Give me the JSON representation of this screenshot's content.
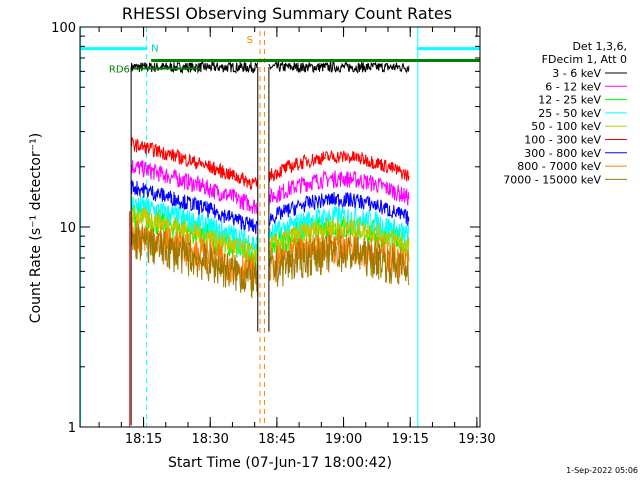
{
  "chart_data": {
    "type": "line",
    "title": "RHESSI Observing Summary Count Rates",
    "xlabel": "Start Time (07-Jun-17 18:00:42)",
    "ylabel": "Count Rate (s⁻¹ detector⁻¹)",
    "y_scale": "log",
    "ylim": [
      1,
      100
    ],
    "xlim_minutes": [
      0,
      90
    ],
    "x_ticks": [
      "18:15",
      "18:30",
      "18:45",
      "19:00",
      "19:15",
      "19:30"
    ],
    "y_ticks": [
      "1",
      "10",
      "100"
    ],
    "legend_header": [
      "Det 1,3,6,",
      "FDecim 1, Att 0"
    ],
    "series": [
      {
        "name": "3 - 6 keV",
        "color": "#000000",
        "level": 63
      },
      {
        "name": "6 - 12 keV",
        "color": "#ff00ff",
        "level": 14
      },
      {
        "name": "12 - 25 keV",
        "color": "#00ff00",
        "level": 8
      },
      {
        "name": "25 - 50 keV",
        "color": "#00ffff",
        "level": 9
      },
      {
        "name": "50 - 100 keV",
        "color": "#c8c800",
        "level": 8
      },
      {
        "name": "100 - 300 keV",
        "color": "#ff0000",
        "level": 18
      },
      {
        "name": "300 - 800 keV",
        "color": "#0000ff",
        "level": 11
      },
      {
        "name": "800 - 7000 keV",
        "color": "#ff8000",
        "level": 6.5
      },
      {
        "name": "7000 - 15000 keV",
        "color": "#a07800",
        "level": 6
      }
    ],
    "annotations": {
      "rd6_label": "RD6",
      "n_marker": "N",
      "s_marker": "S",
      "rd6_level": 68
    },
    "grid": false,
    "legend_placement": "right"
  },
  "footer": {
    "timestamp": "1-Sep-2022 05:06"
  }
}
